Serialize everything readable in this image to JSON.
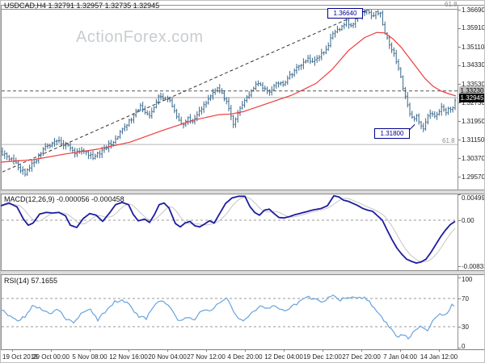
{
  "window": {
    "title": "USDCAD,H4 1.32791 1.32957 1.32735 1.32945",
    "watermark": "ActionForex.com"
  },
  "panes": {
    "macd": {
      "label": "MACD(12,26,9) -0.000056 -0.000458"
    },
    "rsi": {
      "label": "RSI(14) 57.1655"
    }
  },
  "annotations": {
    "resistance_label": "1.36640",
    "support_label": "1.31800",
    "level_label": "1.33230",
    "price_label": "1.32945",
    "fib_top": "61.8",
    "fib_mid": "61.8"
  },
  "colors": {
    "bar": "#38678a",
    "ma": "#ef3b3b",
    "trend": "#333333",
    "macd_line": "#1c1c9e",
    "macd_signal": "#c6c6c6",
    "rsi_line": "#66a3dd",
    "dashed_level": "#555555",
    "current_line": "#a8a8a8",
    "fib_line": "#b4b4b4",
    "guide": "#999999"
  },
  "axes": {
    "price_ticks": [
      {
        "label": "1.36690",
        "value": 1.3669
      },
      {
        "label": "1.35910",
        "value": 1.3591
      },
      {
        "label": "1.35110",
        "value": 1.3511
      },
      {
        "label": "1.34330",
        "value": 1.3433
      },
      {
        "label": "1.33530",
        "value": 1.3353
      },
      {
        "label": "1.32730",
        "value": 1.3273
      },
      {
        "label": "1.31950",
        "value": 1.3195
      },
      {
        "label": "1.31150",
        "value": 1.3115
      },
      {
        "label": "1.30370",
        "value": 1.3037
      },
      {
        "label": "1.29570",
        "value": 1.2957
      }
    ],
    "macd_ticks": [
      {
        "label": "0.004998",
        "value": 0.004998
      },
      {
        "label": "0.00",
        "value": 0
      },
      {
        "label": "-0.00833",
        "value": -0.00833
      }
    ],
    "rsi_ticks": [
      {
        "label": "100",
        "value": 100
      },
      {
        "label": "70",
        "value": 70
      },
      {
        "label": "30",
        "value": 30
      },
      {
        "label": "0",
        "value": 0
      }
    ],
    "dates": [
      "19 Oct 2018",
      "29 Oct 00:00",
      "5 Nov 08:00",
      "12 Nov 16:00",
      "20 Nov 04:00",
      "27 Nov 12:00",
      "4 Dec 20:00",
      "12 Dec 04:00",
      "19 Dec 12:00",
      "27 Dec 20:00",
      "7 Jan 04:00",
      "14 Jan 12:00"
    ],
    "date_tick_x": [
      14,
      62,
      110,
      158,
      206,
      254,
      302,
      350,
      398,
      446,
      494,
      542
    ]
  },
  "chart_data": [
    {
      "type": "ohlc-bar",
      "symbol": "USDCAD",
      "timeframe": "H4",
      "ohlc_display": {
        "open": "1.32791",
        "high": "1.32957",
        "low": "1.32735",
        "close": "1.32945"
      },
      "ylim": [
        1.2957,
        1.3669
      ],
      "levels": {
        "resistance": 1.3664,
        "support": 1.318,
        "dashed_level": 1.3323,
        "current": 1.32945,
        "fib_618": 1.3095
      },
      "trendline": {
        "from": [
          2,
          1.2978
        ],
        "to": [
          452,
          1.3664
        ]
      },
      "price_path": [
        [
          0,
          1.3065
        ],
        [
          8,
          1.304
        ],
        [
          16,
          1.3022
        ],
        [
          24,
          1.299
        ],
        [
          30,
          1.2975
        ],
        [
          36,
          1.3
        ],
        [
          44,
          1.303
        ],
        [
          52,
          1.3075
        ],
        [
          60,
          1.3092
        ],
        [
          68,
          1.311
        ],
        [
          76,
          1.31
        ],
        [
          84,
          1.3085
        ],
        [
          92,
          1.306
        ],
        [
          100,
          1.3072
        ],
        [
          108,
          1.3052
        ],
        [
          116,
          1.304
        ],
        [
          124,
          1.3065
        ],
        [
          132,
          1.309
        ],
        [
          140,
          1.311
        ],
        [
          148,
          1.3145
        ],
        [
          156,
          1.3185
        ],
        [
          164,
          1.3215
        ],
        [
          172,
          1.326
        ],
        [
          178,
          1.324
        ],
        [
          184,
          1.3215
        ],
        [
          190,
          1.326
        ],
        [
          196,
          1.33
        ],
        [
          202,
          1.328
        ],
        [
          208,
          1.3295
        ],
        [
          214,
          1.325
        ],
        [
          220,
          1.32
        ],
        [
          226,
          1.318
        ],
        [
          232,
          1.3205
        ],
        [
          238,
          1.3195
        ],
        [
          244,
          1.323
        ],
        [
          250,
          1.3255
        ],
        [
          256,
          1.329
        ],
        [
          262,
          1.331
        ],
        [
          268,
          1.333
        ],
        [
          274,
          1.3305
        ],
        [
          280,
          1.328
        ],
        [
          284,
          1.323
        ],
        [
          288,
          1.318
        ],
        [
          292,
          1.321
        ],
        [
          296,
          1.3255
        ],
        [
          302,
          1.3285
        ],
        [
          308,
          1.331
        ],
        [
          314,
          1.334
        ],
        [
          320,
          1.336
        ],
        [
          326,
          1.333
        ],
        [
          332,
          1.332
        ],
        [
          338,
          1.334
        ],
        [
          344,
          1.336
        ],
        [
          350,
          1.334
        ],
        [
          356,
          1.338
        ],
        [
          362,
          1.3405
        ],
        [
          368,
          1.3425
        ],
        [
          374,
          1.3445
        ],
        [
          380,
          1.3455
        ],
        [
          386,
          1.3445
        ],
        [
          392,
          1.347
        ],
        [
          398,
          1.348
        ],
        [
          404,
          1.351
        ],
        [
          410,
          1.356
        ],
        [
          416,
          1.358
        ],
        [
          422,
          1.36
        ],
        [
          428,
          1.362
        ],
        [
          434,
          1.36
        ],
        [
          440,
          1.3635
        ],
        [
          446,
          1.365
        ],
        [
          452,
          1.3664
        ],
        [
          458,
          1.364
        ],
        [
          464,
          1.3655
        ],
        [
          470,
          1.366
        ],
        [
          474,
          1.358
        ],
        [
          478,
          1.3545
        ],
        [
          482,
          1.351
        ],
        [
          486,
          1.348
        ],
        [
          490,
          1.344
        ],
        [
          494,
          1.34
        ],
        [
          498,
          1.333
        ],
        [
          502,
          1.328
        ],
        [
          506,
          1.323
        ],
        [
          510,
          1.32
        ],
        [
          514,
          1.3215
        ],
        [
          518,
          1.318
        ],
        [
          522,
          1.3155
        ],
        [
          526,
          1.32
        ],
        [
          530,
          1.3215
        ],
        [
          534,
          1.323
        ],
        [
          538,
          1.32
        ],
        [
          542,
          1.324
        ],
        [
          546,
          1.325
        ],
        [
          550,
          1.3235
        ],
        [
          554,
          1.325
        ],
        [
          558,
          1.323
        ],
        [
          563,
          1.3294
        ]
      ],
      "ma_path": [
        [
          0,
          1.302
        ],
        [
          40,
          1.303
        ],
        [
          80,
          1.3055
        ],
        [
          120,
          1.3075
        ],
        [
          160,
          1.3105
        ],
        [
          200,
          1.3155
        ],
        [
          240,
          1.32
        ],
        [
          270,
          1.3222
        ],
        [
          285,
          1.3225
        ],
        [
          300,
          1.3235
        ],
        [
          330,
          1.327
        ],
        [
          360,
          1.3305
        ],
        [
          390,
          1.3355
        ],
        [
          410,
          1.3415
        ],
        [
          430,
          1.3495
        ],
        [
          450,
          1.355
        ],
        [
          465,
          1.3572
        ],
        [
          475,
          1.357
        ],
        [
          485,
          1.3545
        ],
        [
          495,
          1.351
        ],
        [
          505,
          1.3465
        ],
        [
          515,
          1.342
        ],
        [
          525,
          1.3375
        ],
        [
          535,
          1.3342
        ],
        [
          545,
          1.3322
        ],
        [
          555,
          1.331
        ],
        [
          563,
          1.3302
        ]
      ]
    },
    {
      "type": "line",
      "name": "MACD",
      "params": "12,26,9",
      "current_values": [
        -5.6e-05,
        -0.000458
      ],
      "ylim": [
        -0.00833,
        0.004998
      ],
      "values": [
        [
          0,
          0.0026
        ],
        [
          10,
          0.0031
        ],
        [
          20,
          0.0024
        ],
        [
          28,
          0.0002
        ],
        [
          34,
          -0.0009
        ],
        [
          40,
          -0.0005
        ],
        [
          48,
          0.0011
        ],
        [
          56,
          0.0014
        ],
        [
          64,
          0.0013
        ],
        [
          72,
          0.0014
        ],
        [
          80,
          0.0008
        ],
        [
          86,
          -0.0009
        ],
        [
          94,
          -0.0013
        ],
        [
          102,
          0.0003
        ],
        [
          110,
          0.0012
        ],
        [
          118,
          0.0009
        ],
        [
          126,
          -0.0002
        ],
        [
          134,
          0.0012
        ],
        [
          142,
          0.0028
        ],
        [
          150,
          0.0032
        ],
        [
          158,
          0.0028
        ],
        [
          164,
          0.001
        ],
        [
          170,
          -0.0001
        ],
        [
          178,
          0.0002
        ],
        [
          184,
          -0.0004
        ],
        [
          190,
          0.001
        ],
        [
          196,
          0.0028
        ],
        [
          202,
          0.0031
        ],
        [
          208,
          0.0022
        ],
        [
          216,
          -0.0006
        ],
        [
          222,
          -0.0012
        ],
        [
          228,
          -0.0005
        ],
        [
          234,
          -0.0002
        ],
        [
          240,
          -0.001
        ],
        [
          246,
          -0.0012
        ],
        [
          252,
          -0.0007
        ],
        [
          258,
          -0.0001
        ],
        [
          264,
          -0.0005
        ],
        [
          270,
          0.001
        ],
        [
          278,
          0.003
        ],
        [
          286,
          0.004
        ],
        [
          294,
          0.0043
        ],
        [
          302,
          0.0043
        ],
        [
          308,
          0.0025
        ],
        [
          314,
          0.0014
        ],
        [
          320,
          0.0009
        ],
        [
          326,
          0.0018
        ],
        [
          332,
          0.002
        ],
        [
          338,
          0.0012
        ],
        [
          344,
          0.0005
        ],
        [
          350,
          0.0004
        ],
        [
          356,
          0.0006
        ],
        [
          364,
          0.001
        ],
        [
          372,
          0.0013
        ],
        [
          380,
          0.0016
        ],
        [
          388,
          0.0019
        ],
        [
          396,
          0.0021
        ],
        [
          404,
          0.0026
        ],
        [
          412,
          0.0044
        ],
        [
          418,
          0.0042
        ],
        [
          424,
          0.0036
        ],
        [
          430,
          0.0034
        ],
        [
          436,
          0.003
        ],
        [
          442,
          0.0026
        ],
        [
          448,
          0.0021
        ],
        [
          454,
          0.0018
        ],
        [
          460,
          0.0016
        ],
        [
          466,
          0.0008
        ],
        [
          472,
          0.0
        ],
        [
          478,
          -0.0018
        ],
        [
          484,
          -0.0035
        ],
        [
          490,
          -0.005
        ],
        [
          496,
          -0.0061
        ],
        [
          502,
          -0.007
        ],
        [
          508,
          -0.0074
        ],
        [
          514,
          -0.0077
        ],
        [
          520,
          -0.0075
        ],
        [
          526,
          -0.007
        ],
        [
          532,
          -0.0058
        ],
        [
          538,
          -0.0044
        ],
        [
          544,
          -0.003
        ],
        [
          550,
          -0.0018
        ],
        [
          556,
          -0.0008
        ],
        [
          563,
          -0.0001
        ]
      ]
    },
    {
      "type": "line",
      "name": "RSI",
      "params": "14",
      "current_value": 57.1655,
      "ylim": [
        0,
        100
      ],
      "guides": [
        70,
        30
      ],
      "values": [
        [
          0,
          55
        ],
        [
          10,
          45
        ],
        [
          20,
          38
        ],
        [
          30,
          45
        ],
        [
          40,
          60
        ],
        [
          50,
          55
        ],
        [
          60,
          48
        ],
        [
          70,
          55
        ],
        [
          80,
          42
        ],
        [
          90,
          35
        ],
        [
          100,
          50
        ],
        [
          110,
          55
        ],
        [
          120,
          40
        ],
        [
          130,
          52
        ],
        [
          140,
          65
        ],
        [
          150,
          68
        ],
        [
          160,
          60
        ],
        [
          170,
          45
        ],
        [
          180,
          42
        ],
        [
          190,
          62
        ],
        [
          200,
          68
        ],
        [
          210,
          55
        ],
        [
          220,
          38
        ],
        [
          230,
          45
        ],
        [
          240,
          40
        ],
        [
          250,
          55
        ],
        [
          260,
          52
        ],
        [
          270,
          65
        ],
        [
          280,
          70
        ],
        [
          290,
          45
        ],
        [
          300,
          40
        ],
        [
          310,
          48
        ],
        [
          320,
          60
        ],
        [
          330,
          55
        ],
        [
          340,
          60
        ],
        [
          350,
          52
        ],
        [
          360,
          58
        ],
        [
          370,
          65
        ],
        [
          380,
          72
        ],
        [
          390,
          68
        ],
        [
          400,
          65
        ],
        [
          410,
          75
        ],
        [
          420,
          68
        ],
        [
          430,
          72
        ],
        [
          440,
          70
        ],
        [
          450,
          72
        ],
        [
          460,
          60
        ],
        [
          470,
          45
        ],
        [
          480,
          30
        ],
        [
          490,
          15
        ],
        [
          500,
          20
        ],
        [
          505,
          13
        ],
        [
          512,
          25
        ],
        [
          520,
          30
        ],
        [
          528,
          25
        ],
        [
          535,
          40
        ],
        [
          542,
          48
        ],
        [
          550,
          45
        ],
        [
          555,
          52
        ],
        [
          563,
          57
        ]
      ]
    }
  ]
}
